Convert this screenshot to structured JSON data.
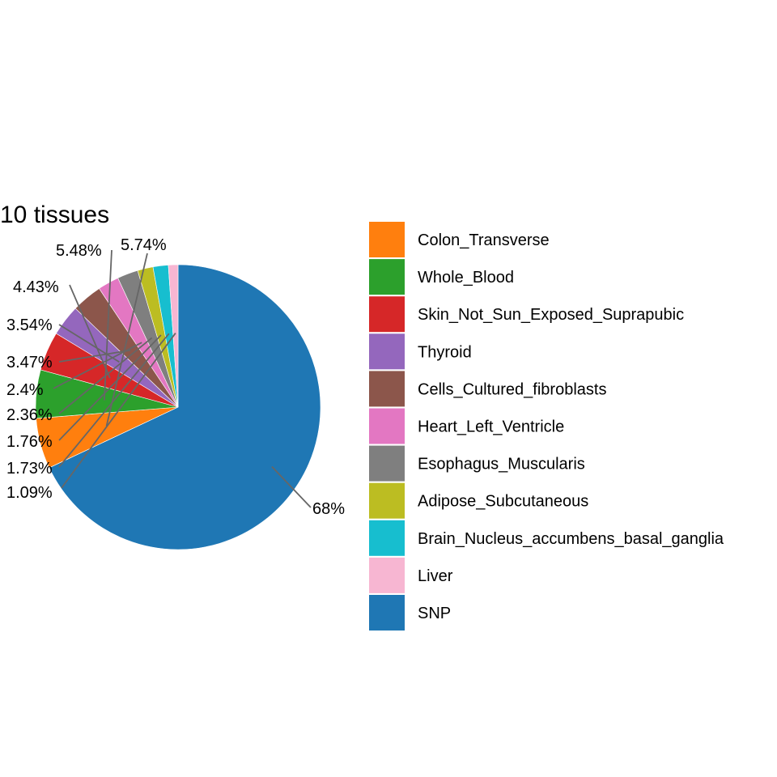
{
  "chart_data": {
    "type": "pie",
    "title": "10 tissues",
    "slices": [
      {
        "name": "SNP",
        "value": 68,
        "label": "68%",
        "color": "#1F77B4"
      },
      {
        "name": "Colon_Transverse",
        "value": 5.74,
        "label": "5.74%",
        "color": "#FF7F0E"
      },
      {
        "name": "Whole_Blood",
        "value": 5.48,
        "label": "5.48%",
        "color": "#2CA02C"
      },
      {
        "name": "Skin_Not_Sun_Exposed_Suprapubic",
        "value": 4.43,
        "label": "4.43%",
        "color": "#D62728"
      },
      {
        "name": "Thyroid",
        "value": 3.54,
        "label": "3.54%",
        "color": "#9467BD"
      },
      {
        "name": "Cells_Cultured_fibroblasts",
        "value": 3.47,
        "label": "3.47%",
        "color": "#8C564B"
      },
      {
        "name": "Heart_Left_Ventricle",
        "value": 2.4,
        "label": "2.4%",
        "color": "#E377C2"
      },
      {
        "name": "Esophagus_Muscularis",
        "value": 2.36,
        "label": "2.36%",
        "color": "#7F7F7F"
      },
      {
        "name": "Adipose_Subcutaneous",
        "value": 1.76,
        "label": "1.76%",
        "color": "#BCBD22"
      },
      {
        "name": "Brain_Nucleus_accumbens_basal_ganglia",
        "value": 1.73,
        "label": "1.73%",
        "color": "#17BECF"
      },
      {
        "name": "Liver",
        "value": 1.09,
        "label": "1.09%",
        "color": "#F7B6D2"
      }
    ],
    "legend": {
      "position": "right",
      "entries": [
        "Colon_Transverse",
        "Whole_Blood",
        "Skin_Not_Sun_Exposed_Suprapubic",
        "Thyroid",
        "Cells_Cultured_fibroblasts",
        "Heart_Left_Ventricle",
        "Esophagus_Muscularis",
        "Adipose_Subcutaneous",
        "Brain_Nucleus_accumbens_basal_ganglia",
        "Liver",
        "SNP"
      ]
    }
  }
}
